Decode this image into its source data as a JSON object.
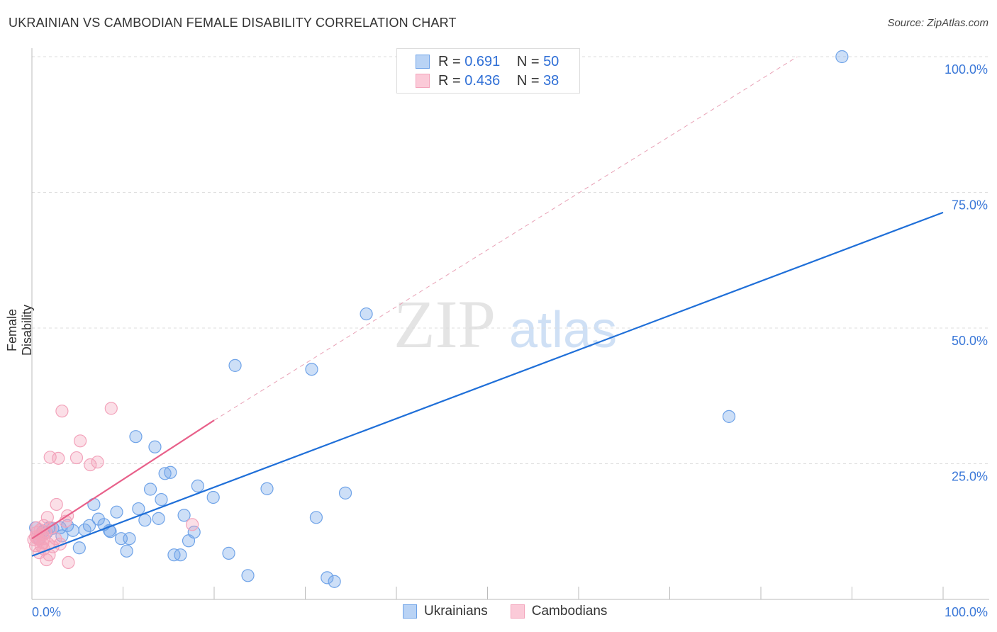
{
  "chart_data": {
    "type": "scatter",
    "title": "UKRAINIAN VS CAMBODIAN FEMALE DISABILITY CORRELATION CHART",
    "source": "Source: ZipAtlas.com",
    "xlabel": "",
    "ylabel": "Female Disability",
    "xlim": [
      0,
      100
    ],
    "ylim": [
      0,
      100
    ],
    "x_tick_labels": [
      "0.0%",
      "100.0%"
    ],
    "y_ticks": [
      25,
      50,
      75,
      100
    ],
    "y_tick_labels": [
      "25.0%",
      "50.0%",
      "75.0%",
      "100.0%"
    ],
    "grid": true,
    "legend_stats": [
      {
        "r_label": "R =",
        "r": "0.691",
        "n_label": "N =",
        "n": "50"
      },
      {
        "r_label": "R =",
        "r": "0.436",
        "n_label": "N =",
        "n": "38"
      }
    ],
    "series": [
      {
        "name": "Ukrainians",
        "color": "#6fa3e8",
        "line_color": "#1f6fd8",
        "trend": [
          [
            0,
            8.0
          ],
          [
            100,
            71.3
          ]
        ],
        "points": [
          [
            88.9,
            100.0
          ],
          [
            36.7,
            52.6
          ],
          [
            22.3,
            43.1
          ],
          [
            30.7,
            42.4
          ],
          [
            76.5,
            33.7
          ],
          [
            11.4,
            30.0
          ],
          [
            13.5,
            28.1
          ],
          [
            14.6,
            23.2
          ],
          [
            15.2,
            23.4
          ],
          [
            13.0,
            20.3
          ],
          [
            18.2,
            20.9
          ],
          [
            25.8,
            20.4
          ],
          [
            34.4,
            19.6
          ],
          [
            19.9,
            18.8
          ],
          [
            14.2,
            18.4
          ],
          [
            6.8,
            17.5
          ],
          [
            11.7,
            16.7
          ],
          [
            9.3,
            16.1
          ],
          [
            16.7,
            15.5
          ],
          [
            31.2,
            15.1
          ],
          [
            7.3,
            14.8
          ],
          [
            12.4,
            14.6
          ],
          [
            13.9,
            14.9
          ],
          [
            7.9,
            13.8
          ],
          [
            6.3,
            13.6
          ],
          [
            8.5,
            12.7
          ],
          [
            8.6,
            12.5
          ],
          [
            3.9,
            13.6
          ],
          [
            2.3,
            13.1
          ],
          [
            4.5,
            12.7
          ],
          [
            5.8,
            12.8
          ],
          [
            3.3,
            11.7
          ],
          [
            9.8,
            11.2
          ],
          [
            10.7,
            11.2
          ],
          [
            17.8,
            12.4
          ],
          [
            17.2,
            10.8
          ],
          [
            5.2,
            9.5
          ],
          [
            10.4,
            8.9
          ],
          [
            21.6,
            8.5
          ],
          [
            15.6,
            8.2
          ],
          [
            16.3,
            8.2
          ],
          [
            23.7,
            4.4
          ],
          [
            32.4,
            4.0
          ],
          [
            33.2,
            3.3
          ],
          [
            1.2,
            12.5
          ],
          [
            0.4,
            13.2
          ],
          [
            1.6,
            12.3
          ],
          [
            0.8,
            11.2
          ],
          [
            1.9,
            13.2
          ],
          [
            3.1,
            13.2
          ]
        ]
      },
      {
        "name": "Cambodians",
        "color": "#f3a3bb",
        "line_color": "#e8608a",
        "trend": [
          [
            0,
            11.2
          ],
          [
            20,
            33.0
          ]
        ],
        "trend_dashed_to": [
          84,
          100
        ],
        "points": [
          [
            3.3,
            34.7
          ],
          [
            8.7,
            35.2
          ],
          [
            5.3,
            29.2
          ],
          [
            2.0,
            26.2
          ],
          [
            2.9,
            26.0
          ],
          [
            4.9,
            26.1
          ],
          [
            7.2,
            25.3
          ],
          [
            6.4,
            24.8
          ],
          [
            2.7,
            17.5
          ],
          [
            3.9,
            15.4
          ],
          [
            1.7,
            15.1
          ],
          [
            3.7,
            14.4
          ],
          [
            17.6,
            13.8
          ],
          [
            1.3,
            13.6
          ],
          [
            0.9,
            12.8
          ],
          [
            0.5,
            12.3
          ],
          [
            0.4,
            11.5
          ],
          [
            0.8,
            11.0
          ],
          [
            1.2,
            10.4
          ],
          [
            0.4,
            9.9
          ],
          [
            2.3,
            9.7
          ],
          [
            1.3,
            9.3
          ],
          [
            3.1,
            10.2
          ],
          [
            1.9,
            8.2
          ],
          [
            1.6,
            7.3
          ],
          [
            4.0,
            6.8
          ],
          [
            0.9,
            11.9
          ],
          [
            0.6,
            11.2
          ],
          [
            1.3,
            11.2
          ],
          [
            0.2,
            11.0
          ],
          [
            1.0,
            9.9
          ],
          [
            1.8,
            10.2
          ],
          [
            2.1,
            13.2
          ],
          [
            0.8,
            8.6
          ],
          [
            1.5,
            12.5
          ],
          [
            0.5,
            13.2
          ],
          [
            2.6,
            11.2
          ],
          [
            1.2,
            11.9
          ]
        ]
      }
    ],
    "watermark": "ZIPatlas"
  }
}
